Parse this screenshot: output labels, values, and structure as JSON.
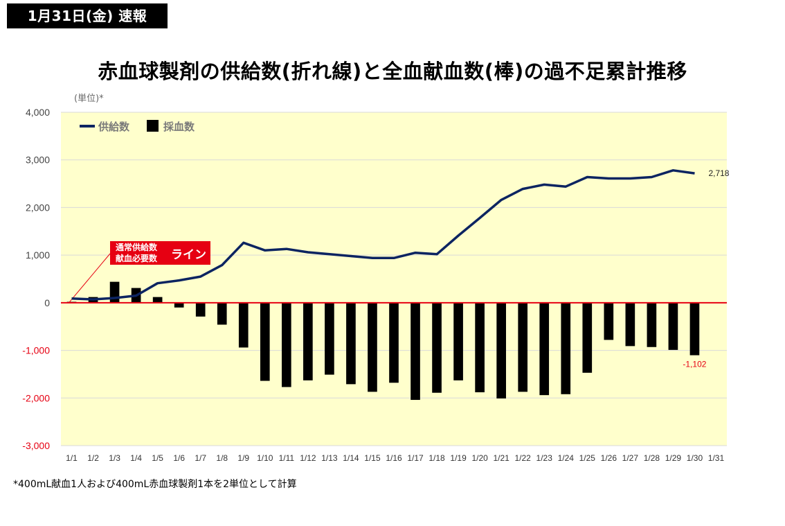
{
  "badge": "1月31日(金) 速報",
  "title": "赤血球製剤の供給数(折れ線)と全血献血数(棒)の過不足累計推移",
  "unit_label": "(単位)*",
  "footnote": "*400mL献血1人および400mL赤血球製剤1本を2単位として計算",
  "annotation": {
    "line1": "通常供給数",
    "line2": "献血必要数",
    "label": "ライン"
  },
  "colors": {
    "plot_bg": "#ffffcc",
    "line": "#0c2461",
    "bar": "#000000",
    "zero_line": "#e60012",
    "neg_tick": "#e60012",
    "grid": "#d9d9d9"
  },
  "chart_data": {
    "type": "bar+line",
    "categories": [
      "1/1",
      "1/2",
      "1/3",
      "1/4",
      "1/5",
      "1/6",
      "1/7",
      "1/8",
      "1/9",
      "1/10",
      "1/11",
      "1/12",
      "1/13",
      "1/14",
      "1/15",
      "1/16",
      "1/17",
      "1/18",
      "1/19",
      "1/20",
      "1/21",
      "1/22",
      "1/23",
      "1/24",
      "1/25",
      "1/26",
      "1/27",
      "1/28",
      "1/29",
      "1/30",
      "1/31"
    ],
    "yticks": [
      "4,000",
      "3,000",
      "2,000",
      "1,000",
      "0",
      "-1,000",
      "-2,000",
      "-3,000"
    ],
    "ylim": [
      -3000,
      4000
    ],
    "series": [
      {
        "name": "供給数",
        "kind": "line",
        "values": [
          90,
          70,
          100,
          150,
          410,
          470,
          550,
          790,
          1260,
          1100,
          1130,
          1060,
          1020,
          980,
          940,
          940,
          1050,
          1020,
          1410,
          1780,
          2160,
          2390,
          2480,
          2440,
          2640,
          2610,
          2610,
          2640,
          2780,
          2718,
          null
        ]
      },
      {
        "name": "採血数",
        "kind": "bar",
        "values": [
          20,
          120,
          440,
          310,
          120,
          -100,
          -290,
          -460,
          -940,
          -1640,
          -1770,
          -1630,
          -1510,
          -1710,
          -1870,
          -1680,
          -2040,
          -1890,
          -1630,
          -1880,
          -2010,
          -1870,
          -1940,
          -1920,
          -1470,
          -780,
          -910,
          -930,
          -990,
          -1102,
          null
        ]
      }
    ],
    "data_labels": {
      "line_last": "2,718",
      "bar_last": "-1,102"
    },
    "legend": {
      "position": "top-left"
    },
    "xlabel": "",
    "ylabel": "(単位)*"
  }
}
